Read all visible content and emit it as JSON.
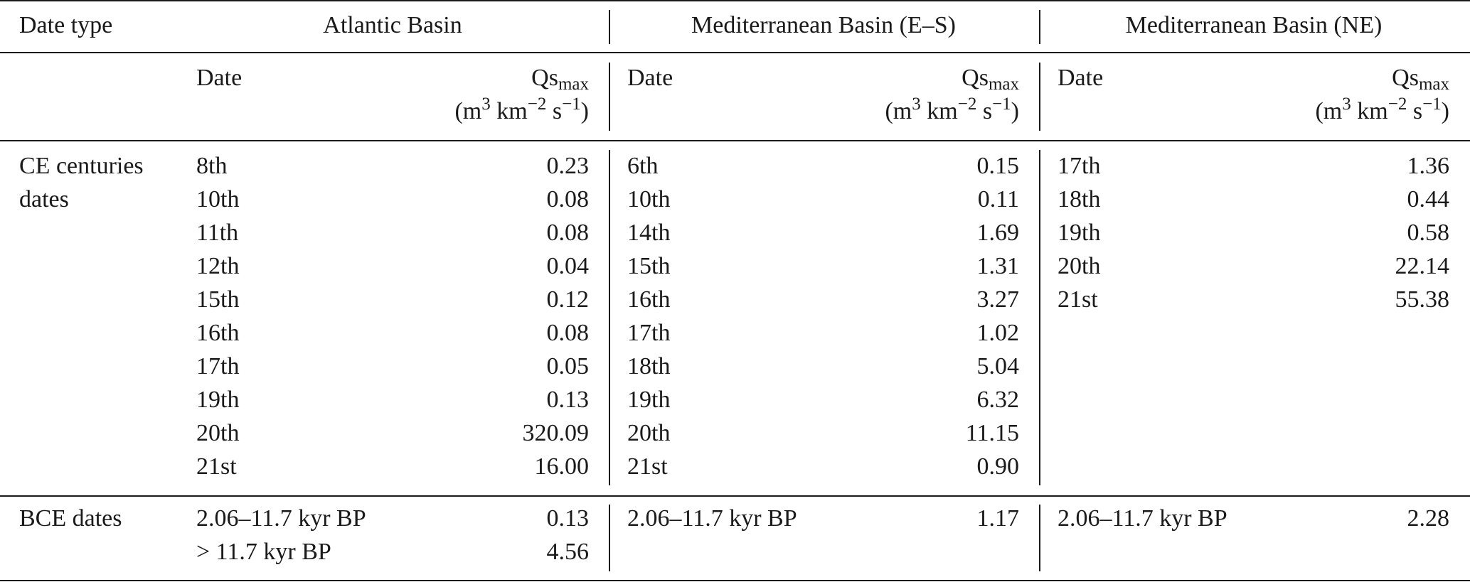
{
  "header": {
    "date_type": "Date type",
    "basins": [
      "Atlantic Basin",
      "Mediterranean Basin (E–S)",
      "Mediterranean Basin (NE)"
    ],
    "sub_date": "Date",
    "sub_qs_main": "Qs",
    "sub_qs_sub": "max",
    "unit_open": "(m",
    "unit_sup1": "3",
    "unit_km": " km",
    "unit_sup2": "−2",
    "unit_s": " s",
    "unit_sup3": "−1",
    "unit_close": ")"
  },
  "ce": {
    "label_line1": "CE centuries",
    "label_line2": "dates",
    "atlantic": {
      "dates": [
        "8th",
        "10th",
        "11th",
        "12th",
        "15th",
        "16th",
        "17th",
        "19th",
        "20th",
        "21st"
      ],
      "values": [
        "0.23",
        "0.08",
        "0.08",
        "0.04",
        "0.12",
        "0.08",
        "0.05",
        "0.13",
        "320.09",
        "16.00"
      ]
    },
    "med_es": {
      "dates": [
        "6th",
        "10th",
        "14th",
        "15th",
        "16th",
        "17th",
        "18th",
        "19th",
        "20th",
        "21st"
      ],
      "values": [
        "0.15",
        "0.11",
        "1.69",
        "1.31",
        "3.27",
        "1.02",
        "5.04",
        "6.32",
        "11.15",
        "0.90"
      ]
    },
    "med_ne": {
      "dates": [
        "17th",
        "18th",
        "19th",
        "20th",
        "21st"
      ],
      "values": [
        "1.36",
        "0.44",
        "0.58",
        "22.14",
        "55.38"
      ]
    }
  },
  "bce": {
    "label": "BCE dates",
    "atlantic": {
      "dates": [
        "2.06–11.7 kyr BP",
        "> 11.7 kyr BP"
      ],
      "values": [
        "0.13",
        "4.56"
      ]
    },
    "med_es": {
      "dates": [
        "2.06–11.7 kyr BP"
      ],
      "values": [
        "1.17"
      ]
    },
    "med_ne": {
      "dates": [
        "2.06–11.7 kyr BP"
      ],
      "values": [
        "2.28"
      ]
    }
  }
}
